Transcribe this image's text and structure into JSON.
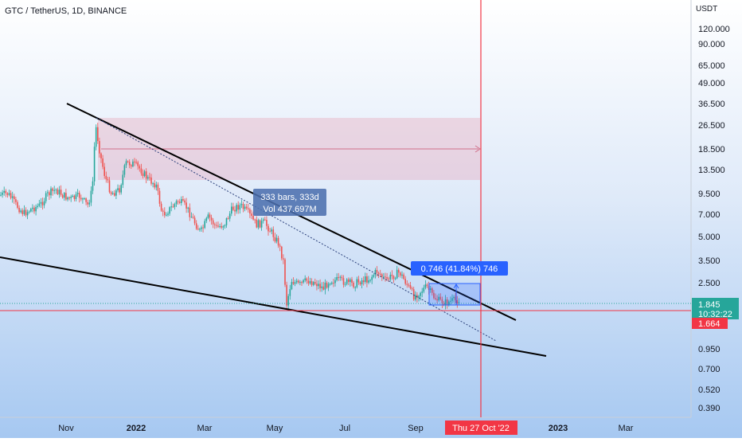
{
  "header": {
    "title": "GTC / TetherUS, 1D, BINANCE"
  },
  "colors": {
    "up": "#26a69a",
    "down": "#ef5350",
    "trendline": "#000000",
    "red_line": "#f23645",
    "box_fill": "#e9a0b4",
    "measure_blue": "#2962ff",
    "price_label_green": "#26a69a",
    "price_label_red": "#f23645"
  },
  "chart_data": {
    "type": "candlestick",
    "title": "GTC / TetherUS, 1D, BINANCE",
    "y_axis": {
      "title": "USDT",
      "scale": "log",
      "ticks": [
        "120.000",
        "90.000",
        "65.000",
        "49.000",
        "36.500",
        "26.500",
        "18.500",
        "13.500",
        "9.500",
        "7.000",
        "5.000",
        "3.500",
        "2.500",
        "1.664",
        "0.950",
        "0.700",
        "0.520",
        "0.390"
      ]
    },
    "x_axis": {
      "ticks": [
        "Nov",
        "2022",
        "Mar",
        "May",
        "Jul",
        "Sep",
        "2023",
        "Mar"
      ],
      "crosshair_label": "Thu 27 Oct '22"
    },
    "price_labels": {
      "current": "1.845",
      "countdown": "10:32:22",
      "level": "1.664"
    },
    "annotations": {
      "bars_range": "333 bars, 333d",
      "volume": "Vol 437.697M",
      "measure": "0.746 (41.84%) 746"
    }
  }
}
